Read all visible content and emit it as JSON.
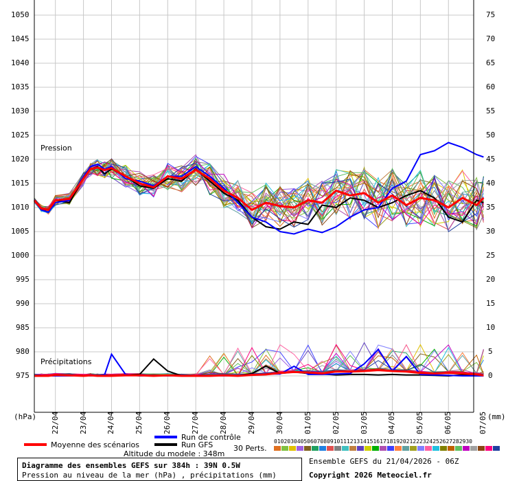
{
  "chart_data": {
    "type": "line",
    "title": "Diagramme des ensembles GEFS sur 384h : 39N 0.5W",
    "subtitle": "Pression au niveau de la mer (hPa) , précipitations (mm)",
    "left_axis_unit": "(hPa)",
    "right_axis_unit": "(mm)",
    "left_ticks": [
      1050,
      1045,
      1040,
      1035,
      1030,
      1025,
      1020,
      1015,
      1010,
      1005,
      1000,
      995,
      990,
      985,
      980,
      975
    ],
    "right_ticks": [
      75,
      70,
      65,
      60,
      55,
      50,
      45,
      40,
      35,
      30,
      25,
      20,
      15,
      10,
      5,
      0
    ],
    "x_tick_labels": [
      "22/04",
      "23/04",
      "24/04",
      "25/04",
      "26/04",
      "27/04",
      "28/04",
      "29/04",
      "30/04",
      "01/05",
      "02/05",
      "03/05",
      "04/05",
      "05/05",
      "06/05",
      "07/05"
    ],
    "ylim_pressure": [
      970,
      1053
    ],
    "ylim_precip": [
      -5,
      78
    ],
    "grid": true,
    "annotations": {
      "pressure": "Pression",
      "precip": "Précipitations"
    },
    "legend": {
      "mean": "Moyenne des scénarios",
      "control": "Run de contrôle",
      "gfs": "Run GFS",
      "perts": "30 Perts.",
      "altitude": "Altitude du modele : 348m"
    },
    "pert_numbers": [
      "01",
      "02",
      "03",
      "04",
      "05",
      "06",
      "07",
      "08",
      "09",
      "10",
      "11",
      "12",
      "13",
      "14",
      "15",
      "16",
      "17",
      "18",
      "19",
      "20",
      "21",
      "22",
      "23",
      "24",
      "25",
      "26",
      "27",
      "28",
      "29",
      "30"
    ],
    "ensemble_info": "Ensemble GEFS du 21/04/2026 - 06Z",
    "copyright": "Copyright 2026 Meteociel.fr",
    "colors": {
      "mean": "#ff0000",
      "control": "#0000ff",
      "gfs": "#000000",
      "grid": "#c8c8c8",
      "perts": [
        "#e07020",
        "#80c040",
        "#e0c000",
        "#a060e0",
        "#806020",
        "#20a060",
        "#2080e0",
        "#e05050",
        "#808080",
        "#40c0c0",
        "#c08040",
        "#6040c0",
        "#d0d000",
        "#00b000",
        "#b050b0",
        "#4040ff",
        "#ff8040",
        "#60a0a0",
        "#a0a020",
        "#8080ff",
        "#ff60a0",
        "#20c0e0",
        "#808000",
        "#c06000",
        "#60c060",
        "#c000c0",
        "#a0a0a0",
        "#8b4513",
        "#ff0080",
        "#2040a0"
      ]
    },
    "series": [
      {
        "key": "mean",
        "x": [
          "2026-04-21T06",
          "2026-04-21T12",
          "2026-04-21T18",
          "2026-04-22T00",
          "2026-04-22T12",
          "2026-04-23T00",
          "2026-04-23T06",
          "2026-04-23T12",
          "2026-04-23T18",
          "2026-04-24T00",
          "2026-04-24T12",
          "2026-04-25T00",
          "2026-04-25T12",
          "2026-04-26T00",
          "2026-04-26T12",
          "2026-04-27T00",
          "2026-04-27T12",
          "2026-04-28T00",
          "2026-04-28T12",
          "2026-04-29T00",
          "2026-04-29T12",
          "2026-04-30T00",
          "2026-04-30T12",
          "2026-05-01T00",
          "2026-05-01T12",
          "2026-05-02T00",
          "2026-05-02T12",
          "2026-05-03T00",
          "2026-05-03T12",
          "2026-05-04T00",
          "2026-05-04T12",
          "2026-05-05T00",
          "2026-05-05T12",
          "2026-05-06T00",
          "2026-05-06T12",
          "2026-05-07T00",
          "2026-05-07T06"
        ],
        "pressure": [
          1011.5,
          1009.8,
          1009.5,
          1011.5,
          1011.8,
          1016.0,
          1018.0,
          1018.3,
          1017.8,
          1018.2,
          1016.5,
          1015.0,
          1014.2,
          1016.5,
          1016.0,
          1017.8,
          1016.0,
          1013.5,
          1012.0,
          1009.5,
          1011.0,
          1010.3,
          1010.0,
          1011.5,
          1011.0,
          1013.5,
          1012.5,
          1013.0,
          1011.0,
          1012.5,
          1010.5,
          1012.0,
          1011.5,
          1010.0,
          1012.0,
          1010.5,
          1012.0
        ],
        "precip": [
          0,
          0,
          0,
          0.2,
          0.1,
          0,
          0.1,
          0,
          0,
          0,
          0.1,
          0.1,
          0,
          0.1,
          0,
          0,
          0,
          0.1,
          0,
          0.2,
          0.3,
          0.6,
          0.8,
          0.7,
          0.5,
          0.9,
          0.9,
          1.0,
          1.2,
          1.0,
          0.9,
          0.6,
          0.5,
          0.6,
          0.5,
          0.3,
          0.1
        ]
      },
      {
        "key": "control",
        "x": [
          "2026-04-21T06",
          "2026-04-21T12",
          "2026-04-21T18",
          "2026-04-22T00",
          "2026-04-22T12",
          "2026-04-23T00",
          "2026-04-23T06",
          "2026-04-23T12",
          "2026-04-23T18",
          "2026-04-24T00",
          "2026-04-24T12",
          "2026-04-25T00",
          "2026-04-25T12",
          "2026-04-26T00",
          "2026-04-26T12",
          "2026-04-27T00",
          "2026-04-27T12",
          "2026-04-28T00",
          "2026-04-28T12",
          "2026-04-29T00",
          "2026-04-29T12",
          "2026-04-30T00",
          "2026-04-30T12",
          "2026-05-01T00",
          "2026-05-01T12",
          "2026-05-02T00",
          "2026-05-02T12",
          "2026-05-03T00",
          "2026-05-03T12",
          "2026-05-04T00",
          "2026-05-04T12",
          "2026-05-05T00",
          "2026-05-05T12",
          "2026-05-06T00",
          "2026-05-06T12",
          "2026-05-07T00",
          "2026-05-07T06"
        ],
        "pressure": [
          1011.5,
          1009.5,
          1009.0,
          1011.0,
          1011.5,
          1016.5,
          1018.5,
          1019.0,
          1018.0,
          1018.5,
          1016.0,
          1015.5,
          1014.5,
          1016.5,
          1016.5,
          1018.5,
          1016.5,
          1014.0,
          1011.0,
          1008.0,
          1007.0,
          1005.0,
          1004.5,
          1005.5,
          1004.8,
          1006.0,
          1008.0,
          1009.5,
          1010.0,
          1014.0,
          1015.5,
          1021.0,
          1021.8,
          1023.5,
          1022.5,
          1021.0,
          1020.5
        ],
        "precip": [
          0,
          0,
          0,
          0,
          0,
          0,
          0,
          0,
          0.2,
          4.5,
          0.3,
          0,
          0,
          0,
          0,
          0,
          0,
          0,
          0,
          0.3,
          0.4,
          0.4,
          2.0,
          0.3,
          0.3,
          0.4,
          0.5,
          2.5,
          5.5,
          1.0,
          4.0,
          0.3,
          0.2,
          0.1,
          0,
          0,
          0
        ]
      },
      {
        "key": "gfs",
        "x": [
          "2026-04-21T06",
          "2026-04-21T12",
          "2026-04-21T18",
          "2026-04-22T00",
          "2026-04-22T12",
          "2026-04-23T00",
          "2026-04-23T06",
          "2026-04-23T12",
          "2026-04-23T18",
          "2026-04-24T00",
          "2026-04-24T12",
          "2026-04-25T00",
          "2026-04-25T12",
          "2026-04-26T00",
          "2026-04-26T12",
          "2026-04-27T00",
          "2026-04-27T12",
          "2026-04-28T00",
          "2026-04-28T12",
          "2026-04-29T00",
          "2026-04-29T12",
          "2026-04-30T00",
          "2026-04-30T12",
          "2026-05-01T00",
          "2026-05-01T12",
          "2026-05-02T00",
          "2026-05-02T12",
          "2026-05-03T00",
          "2026-05-03T12",
          "2026-05-04T00",
          "2026-05-04T12",
          "2026-05-05T00",
          "2026-05-05T12",
          "2026-05-06T00",
          "2026-05-06T12",
          "2026-05-07T00",
          "2026-05-07T06"
        ],
        "pressure": [
          1011.5,
          1009.5,
          1009.5,
          1011.5,
          1011.0,
          1016.0,
          1018.0,
          1018.5,
          1017.0,
          1018.0,
          1016.5,
          1014.5,
          1014.0,
          1016.0,
          1015.5,
          1018.0,
          1015.5,
          1013.0,
          1011.5,
          1008.0,
          1006.0,
          1005.5,
          1007.0,
          1006.5,
          1010.5,
          1010.0,
          1012.0,
          1011.5,
          1010.0,
          1011.0,
          1012.5,
          1013.5,
          1012.0,
          1008.0,
          1007.0,
          1011.5,
          1011.0
        ],
        "precip": [
          0,
          0,
          0,
          0,
          0,
          0,
          0,
          0,
          0,
          0,
          0.2,
          0.3,
          3.5,
          1.0,
          0,
          0,
          0,
          0,
          0,
          0.5,
          2.0,
          0.5,
          0.8,
          0.5,
          0.4,
          0.2,
          0.3,
          0.3,
          0.2,
          0.3,
          0.2,
          0.2,
          0.1,
          0,
          0.2,
          0.1,
          0
        ]
      }
    ]
  }
}
